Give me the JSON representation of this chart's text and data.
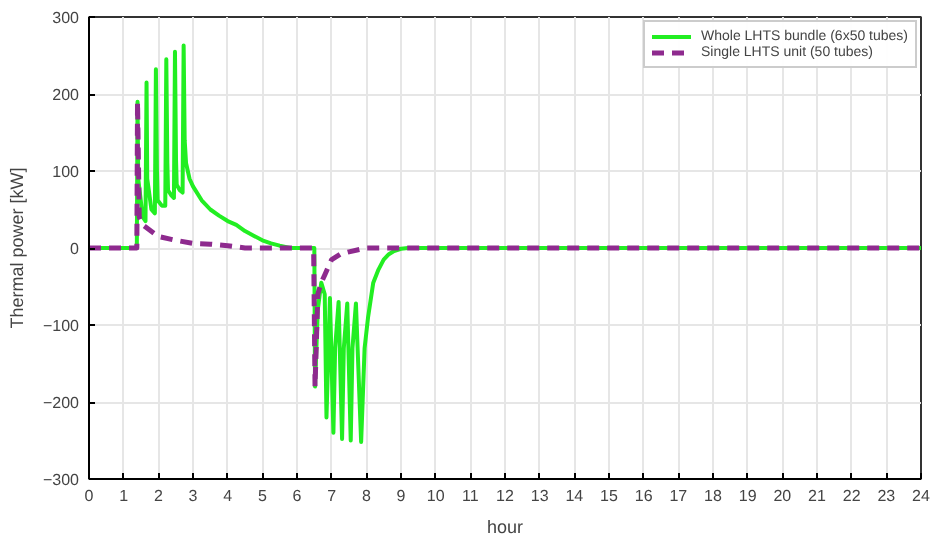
{
  "chart_data": {
    "type": "line",
    "xlabel": "hour",
    "ylabel": "Thermal power [kW]",
    "xlim": [
      0,
      24
    ],
    "ylim": [
      -300,
      300
    ],
    "xticks": [
      0,
      1,
      2,
      3,
      4,
      5,
      6,
      7,
      8,
      9,
      10,
      11,
      12,
      13,
      14,
      15,
      16,
      17,
      18,
      19,
      20,
      21,
      22,
      23,
      24
    ],
    "yticks": [
      -300,
      -200,
      -100,
      0,
      100,
      200,
      300
    ],
    "grid": true,
    "legend": "top right",
    "series": [
      {
        "name": "Whole LHTS bundle (6x50 tubes)",
        "color": "#22ee22",
        "line_style": "solid",
        "x": [
          0,
          1.38,
          1.4,
          1.42,
          1.55,
          1.63,
          1.66,
          1.68,
          1.8,
          1.9,
          1.93,
          1.96,
          1.98,
          2.1,
          2.2,
          2.23,
          2.26,
          2.28,
          2.38,
          2.45,
          2.48,
          2.51,
          2.53,
          2.62,
          2.7,
          2.73,
          2.76,
          2.8,
          2.9,
          3.0,
          3.25,
          3.5,
          3.75,
          4.0,
          4.25,
          4.5,
          4.75,
          5.0,
          5.25,
          5.5,
          5.8,
          6.0,
          6.5,
          6.52,
          6.6,
          6.7,
          6.8,
          6.85,
          6.95,
          7.05,
          7.1,
          7.2,
          7.3,
          7.35,
          7.45,
          7.55,
          7.6,
          7.7,
          7.85,
          7.95,
          8.05,
          8.2,
          8.35,
          8.5,
          8.65,
          8.8,
          9.0,
          9.2,
          10,
          24
        ],
        "values": [
          0,
          0,
          190,
          90,
          40,
          35,
          215,
          90,
          50,
          45,
          232,
          100,
          62,
          55,
          55,
          245,
          110,
          75,
          68,
          65,
          255,
          115,
          82,
          75,
          72,
          263,
          140,
          110,
          90,
          80,
          62,
          50,
          42,
          35,
          30,
          22,
          16,
          10,
          6,
          3,
          0,
          0,
          0,
          -180,
          -80,
          -45,
          -60,
          -220,
          -65,
          -240,
          -130,
          -70,
          -248,
          -130,
          -72,
          -250,
          -130,
          -72,
          -252,
          -130,
          -90,
          -45,
          -28,
          -15,
          -8,
          -4,
          -1,
          0,
          0,
          0
        ]
      },
      {
        "name": "Single LHTS unit (50 tubes)",
        "color": "#8e2a8e",
        "line_style": "dashed",
        "x": [
          0,
          1.38,
          1.4,
          1.45,
          1.55,
          1.7,
          2.0,
          2.5,
          3.0,
          3.5,
          4.0,
          4.5,
          5.0,
          6.48,
          6.52,
          6.6,
          6.7,
          6.8,
          7.0,
          7.25,
          7.5,
          8.0,
          24
        ],
        "values": [
          0,
          0,
          190,
          40,
          30,
          25,
          15,
          10,
          6,
          5,
          3,
          0,
          0,
          0,
          -180,
          -60,
          -45,
          -35,
          -15,
          -8,
          -5,
          0,
          0
        ]
      }
    ]
  }
}
